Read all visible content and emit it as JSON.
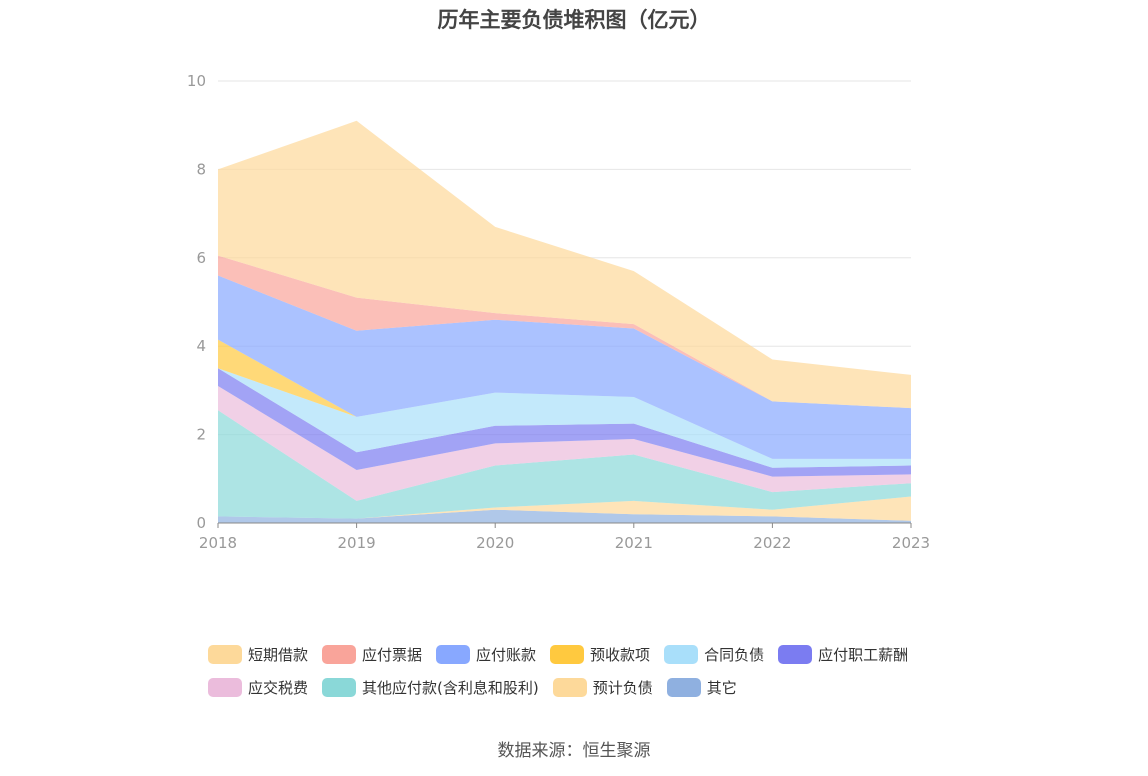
{
  "title": "历年主要负债堆积图（亿元）",
  "source": "数据来源：恒生聚源",
  "chart_data": {
    "type": "area",
    "stacked": true,
    "x": [
      "2018",
      "2019",
      "2020",
      "2021",
      "2022",
      "2023"
    ],
    "ylim": [
      0,
      10
    ],
    "yticks": [
      "0",
      "2",
      "4",
      "6",
      "8",
      "10"
    ],
    "grid": true,
    "legend_position": "bottom",
    "series": [
      {
        "name": "其它",
        "color": "#8fb0e0",
        "values": [
          0.15,
          0.1,
          0.3,
          0.2,
          0.15,
          0.05
        ]
      },
      {
        "name": "预计负债",
        "color": "#fdd99a",
        "values": [
          0.0,
          0.0,
          0.05,
          0.3,
          0.15,
          0.55
        ]
      },
      {
        "name": "其他应付款(含利息和股利)",
        "color": "#8ad8d8",
        "values": [
          2.4,
          0.4,
          0.95,
          1.05,
          0.4,
          0.3
        ]
      },
      {
        "name": "应交税费",
        "color": "#ebbcdc",
        "values": [
          0.55,
          0.7,
          0.5,
          0.35,
          0.35,
          0.2
        ]
      },
      {
        "name": "应付职工薪酬",
        "color": "#7b7cf1",
        "values": [
          0.4,
          0.4,
          0.4,
          0.35,
          0.2,
          0.2
        ]
      },
      {
        "name": "合同负债",
        "color": "#a9dffa",
        "values": [
          0.0,
          0.8,
          0.75,
          0.6,
          0.2,
          0.15
        ]
      },
      {
        "name": "预收款项",
        "color": "#ffc93f",
        "values": [
          0.65,
          0.0,
          0.0,
          0.0,
          0.0,
          0.0
        ]
      },
      {
        "name": "应付账款",
        "color": "#88a8ff",
        "values": [
          1.45,
          1.95,
          1.65,
          1.55,
          1.3,
          1.15
        ]
      },
      {
        "name": "应付票据",
        "color": "#f9a49a",
        "values": [
          0.45,
          0.75,
          0.15,
          0.1,
          0.0,
          0.0
        ]
      },
      {
        "name": "短期借款",
        "color": "#fdd99a",
        "values": [
          1.95,
          4.0,
          1.95,
          1.2,
          0.95,
          0.75
        ]
      }
    ],
    "legend_order": [
      "短期借款",
      "应付票据",
      "应付账款",
      "预收款项",
      "合同负债",
      "应付职工薪酬",
      "应交税费",
      "其他应付款(含利息和股利)",
      "预计负债",
      "其它"
    ]
  }
}
